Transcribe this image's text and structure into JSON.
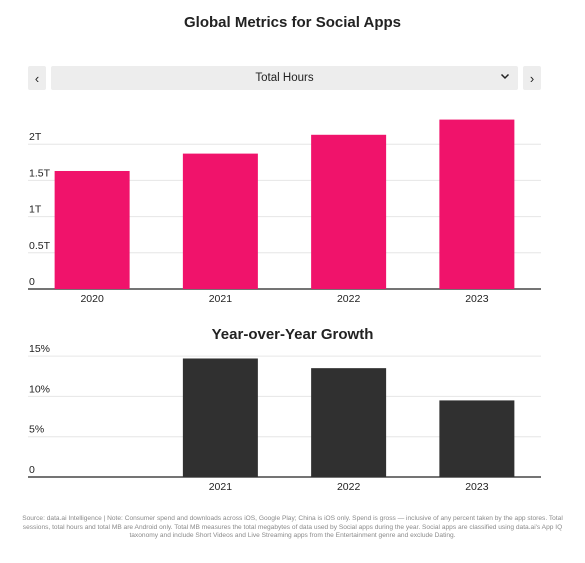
{
  "title": "Global Metrics for Social Apps",
  "selector": {
    "prev_label": "‹",
    "next_label": "›",
    "selected": "Total Hours",
    "chevron_icon": "chevron-down-icon"
  },
  "colors": {
    "primary_bar": "#f0136b",
    "growth_bar": "#303030",
    "grid": "#e6e6e6",
    "axis": "#222222"
  },
  "chart_data": [
    {
      "type": "bar",
      "title": "",
      "categories": [
        "2020",
        "2021",
        "2022",
        "2023"
      ],
      "values": [
        1.63,
        1.87,
        2.13,
        2.34
      ],
      "yticks": [
        0,
        0.5,
        1,
        1.5,
        2
      ],
      "ytick_labels": [
        "0",
        "0.5T",
        "1T",
        "1.5T",
        "2T"
      ],
      "ylim": [
        0,
        2.5
      ],
      "grid": true
    },
    {
      "type": "bar",
      "title": "Year-over-Year Growth",
      "categories": [
        "2021",
        "2022",
        "2023"
      ],
      "values": [
        14.7,
        13.5,
        9.5
      ],
      "yticks": [
        0,
        5,
        10,
        15
      ],
      "ytick_labels": [
        "0",
        "5%",
        "10%",
        "15%"
      ],
      "ylim": [
        0,
        16
      ],
      "grid": true
    }
  ],
  "footer": "Source: data.ai Intelligence | Note: Consumer spend and downloads across iOS, Google Play; China is iOS only. Spend is gross — inclusive of any percent taken by the app stores. Total sessions, total hours and total MB are Android only. Total MB measures the total megabytes of data used by Social apps during the year. Social apps are classified using data.ai's App IQ taxonomy and include Short Videos and Live Streaming apps from the Entertainment genre and exclude Dating."
}
